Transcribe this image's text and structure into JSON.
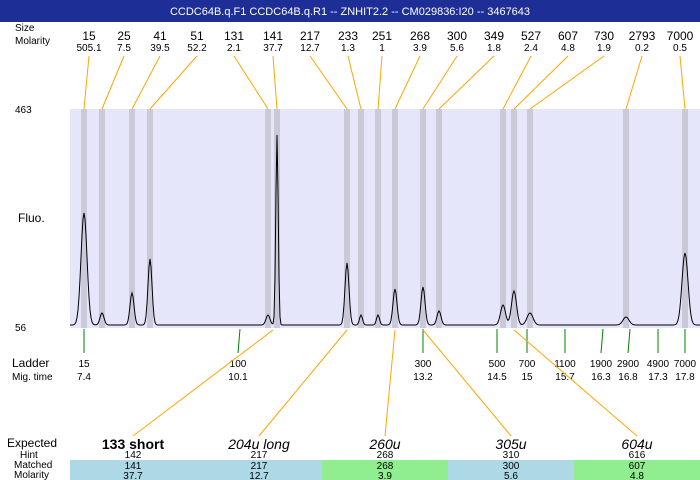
{
  "title": "CCDC64B.q.F1  CCDC64B.q.R1 -- ZNHIT2.2 -- CM029836:I20 -- 3467643",
  "row_labels": {
    "size": "Size",
    "molarity": "Molarity",
    "ladder": "Ladder",
    "mig_time": "Mig. time",
    "fluo": "Fluo.",
    "expected": "Expected",
    "hint": "Hint",
    "matched": "Matched",
    "molarity_bottom": "Molarity"
  },
  "y_axis": {
    "top": "463",
    "bottom": "56"
  },
  "peaks": [
    {
      "size": "15",
      "molarity": "505.1"
    },
    {
      "size": "25",
      "molarity": "7.5"
    },
    {
      "size": "41",
      "molarity": "39.5"
    },
    {
      "size": "51",
      "molarity": "52.2"
    },
    {
      "size": "131",
      "molarity": "2.1"
    },
    {
      "size": "141",
      "molarity": "37.7"
    },
    {
      "size": "217",
      "molarity": "12.7"
    },
    {
      "size": "233",
      "molarity": "1.3"
    },
    {
      "size": "251",
      "molarity": "1"
    },
    {
      "size": "268",
      "molarity": "3.9"
    },
    {
      "size": "300",
      "molarity": "5.6"
    },
    {
      "size": "349",
      "molarity": "1.8"
    },
    {
      "size": "527",
      "molarity": "2.4"
    },
    {
      "size": "607",
      "molarity": "4.8"
    },
    {
      "size": "730",
      "molarity": "1.9"
    },
    {
      "size": "2793",
      "molarity": "0.2"
    },
    {
      "size": "7000",
      "molarity": "0.5"
    }
  ],
  "ladder": [
    {
      "size": "15",
      "time": "7.4"
    },
    {
      "size": "100",
      "time": "10.1"
    },
    {
      "size": "300",
      "time": "13.2"
    },
    {
      "size": "500",
      "time": "14.5"
    },
    {
      "size": "700",
      "time": "15"
    },
    {
      "size": "1100",
      "time": "15.7"
    },
    {
      "size": "1900",
      "time": "16.3"
    },
    {
      "size": "2900",
      "time": "16.8"
    },
    {
      "size": "4900",
      "time": "17.3"
    },
    {
      "size": "7000",
      "time": "17.8"
    }
  ],
  "expected": [
    {
      "label": "133 short",
      "hint": "142",
      "matched": "141",
      "molarity": "37.7",
      "color": "#add8e6"
    },
    {
      "label": "204u long",
      "hint": "217",
      "matched": "217",
      "molarity": "12.7",
      "color": "#add8e6"
    },
    {
      "label": "260u",
      "hint": "268",
      "matched": "268",
      "molarity": "3.9",
      "color": "#90ee90"
    },
    {
      "label": "305u",
      "hint": "310",
      "matched": "300",
      "molarity": "5.6",
      "color": "#add8e6"
    },
    {
      "label": "604u",
      "hint": "616",
      "matched": "607",
      "molarity": "4.8",
      "color": "#90ee90"
    }
  ],
  "colors": {
    "title_bar": "#1d2e97",
    "plot_background": "#e6e6fa",
    "peak_band": "#c9c9d9",
    "peak_line": "#ffa500",
    "ladder_line": "#008000",
    "blue_cell": "#add8e6",
    "green_cell": "#90ee90"
  }
}
